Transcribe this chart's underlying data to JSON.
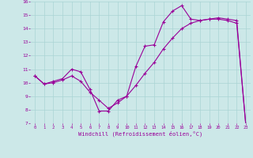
{
  "xlabel": "Windchill (Refroidissement éolien,°C)",
  "xlim": [
    -0.5,
    23.5
  ],
  "ylim": [
    7,
    16
  ],
  "xticks": [
    0,
    1,
    2,
    3,
    4,
    5,
    6,
    7,
    8,
    9,
    10,
    11,
    12,
    13,
    14,
    15,
    16,
    17,
    18,
    19,
    20,
    21,
    22,
    23
  ],
  "yticks": [
    7,
    8,
    9,
    10,
    11,
    12,
    13,
    14,
    15,
    16
  ],
  "line_color": "#990099",
  "bg_color": "#cce8e8",
  "grid_color": "#aad4d4",
  "line1_x": [
    0,
    1,
    2,
    3,
    4,
    5,
    6,
    7,
    8,
    9,
    10,
    11,
    12,
    13,
    14,
    15,
    16,
    17,
    18,
    19,
    20,
    21,
    22,
    23
  ],
  "line1_y": [
    10.5,
    9.9,
    10.1,
    10.3,
    11.0,
    10.8,
    9.5,
    7.9,
    7.9,
    8.7,
    9.0,
    11.2,
    12.7,
    12.8,
    14.5,
    15.3,
    15.7,
    14.7,
    14.6,
    14.7,
    14.8,
    14.7,
    14.6,
    6.8
  ],
  "line2_x": [
    0,
    1,
    2,
    3,
    4,
    5,
    6,
    7,
    8,
    9,
    10,
    11,
    12,
    13,
    14,
    15,
    16,
    17,
    18,
    19,
    20,
    21,
    22,
    23
  ],
  "line2_y": [
    10.5,
    9.9,
    10.0,
    10.2,
    10.5,
    10.1,
    9.3,
    8.7,
    8.1,
    8.5,
    9.0,
    9.8,
    10.7,
    11.5,
    12.5,
    13.3,
    14.0,
    14.4,
    14.6,
    14.7,
    14.7,
    14.6,
    14.4,
    6.8
  ],
  "marker": "+"
}
